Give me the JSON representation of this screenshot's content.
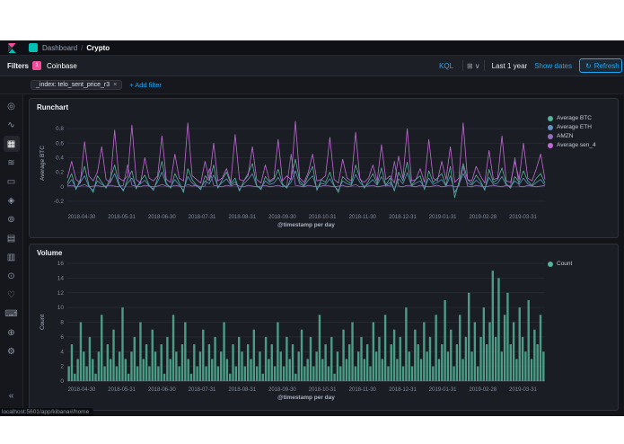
{
  "header": {
    "breadcrumb_parent": "Dashboard",
    "breadcrumb_sep": "/",
    "breadcrumb_current": "Crypto"
  },
  "querybar": {
    "filters_label": "Filters",
    "filters_badge": "1",
    "query_value": "Coinbase",
    "kql_label": "KQL",
    "calendar_icon": "⊞",
    "chevron_icon": "∨",
    "time_value": "Last 1 year",
    "show_dates_label": "Show dates",
    "refresh_icon": "↻",
    "refresh_label": "Refresh"
  },
  "filterrow": {
    "pill_label": "_index: telo_sent_price_r3",
    "pill_close": "×",
    "add_filter_label": "+ Add filter"
  },
  "sidebar": {
    "items": [
      {
        "name": "discover",
        "glyph": "◎",
        "active": false
      },
      {
        "name": "visualize",
        "glyph": "∿",
        "active": false
      },
      {
        "name": "dashboard",
        "glyph": "▦",
        "active": true
      },
      {
        "name": "timelion",
        "glyph": "≋",
        "active": false
      },
      {
        "name": "canvas",
        "glyph": "▭",
        "active": false
      },
      {
        "name": "maps",
        "glyph": "◈",
        "active": false
      },
      {
        "name": "machine-learning",
        "glyph": "⊚",
        "active": false
      },
      {
        "name": "infrastructure",
        "glyph": "▤",
        "active": false
      },
      {
        "name": "logs",
        "glyph": "▥",
        "active": false
      },
      {
        "name": "apm",
        "glyph": "⊙",
        "active": false
      },
      {
        "name": "uptime",
        "glyph": "♡",
        "active": false
      },
      {
        "name": "dev-tools",
        "glyph": "⌨",
        "active": false
      },
      {
        "name": "monitoring",
        "glyph": "⊕",
        "active": false
      },
      {
        "name": "management",
        "glyph": "⚙",
        "active": false
      }
    ],
    "collapse_glyph": "«"
  },
  "statusbar": {
    "url": "localhost:5601/app/kibana#/home"
  },
  "chart_data": [
    {
      "type": "line",
      "title": "Runchart",
      "xlabel": "@timestamp per day",
      "ylabel": "Average BTC",
      "ylim": [
        -0.3,
        0.95
      ],
      "yticks": [
        -0.2,
        0,
        0.2,
        0.4,
        0.6,
        0.8
      ],
      "grid": true,
      "legend_position": "top-right",
      "xticklabels": [
        "2018-04-30",
        "2018-05-31",
        "2018-06-30",
        "2018-07-31",
        "2018-08-31",
        "2018-09-30",
        "2018-10-31",
        "2018-11-30",
        "2018-12-31",
        "2019-01-31",
        "2019-02-28",
        "2019-03-31"
      ],
      "series": [
        {
          "name": "Average BTC",
          "color": "#54b399",
          "values": [
            0.05,
            0.18,
            -0.04,
            0.1,
            0.28,
            0.02,
            -0.08,
            0.15,
            0.06,
            -0.02,
            0.12,
            0.3,
            0.04,
            -0.06,
            0.1,
            0.22,
            -0.03,
            0.08,
            0.16,
            0.02,
            -0.05,
            0.12,
            0.35,
            0.05,
            -0.02,
            0.18,
            0.06,
            -0.08,
            0.25,
            0.1,
            0.02,
            -0.04,
            0.15,
            0.08,
            0.3,
            -0.02,
            0.1,
            0.2,
            0.04,
            0.12,
            -0.06,
            0.08,
            0.18,
            0.32,
            0.02,
            -0.04,
            0.14,
            0.06,
            0.1,
            0.24,
            0.04,
            -0.02,
            0.12,
            0.38,
            0.08,
            0.02,
            0.16,
            0.28,
            -0.05,
            0.1,
            0.06,
            0.2,
            0.02,
            -0.08,
            0.14,
            0.08,
            0.04,
            0.3,
            0.12,
            -0.02,
            0.08,
            0.18,
            0.04,
            0.26,
            0.02,
            0.12,
            -0.06,
            0.2,
            0.08,
            0.34,
            0.02,
            0.1,
            0.15,
            -0.04,
            0.22,
            0.06,
            0.12,
            0.18,
            0.02,
            0.28,
            -0.15,
            0.06,
            0.32,
            0.1,
            0.04,
            0.16,
            0.08,
            -0.05,
            0.24,
            0.06,
            0.1,
            0.26,
            0.04,
            -0.02,
            0.14,
            0.06,
            0.22,
            0.08,
            0.02,
            0.12,
            0.18,
            0.05
          ]
        },
        {
          "name": "Average ETH",
          "color": "#6092c0",
          "values": [
            0.02,
            0.1,
            -0.02,
            0.06,
            0.15,
            0.0,
            -0.05,
            0.08,
            0.03,
            0.0,
            0.06,
            0.18,
            0.02,
            -0.04,
            0.05,
            0.12,
            0.0,
            0.04,
            0.09,
            0.01,
            -0.03,
            0.07,
            0.2,
            0.03,
            0.0,
            0.1,
            0.02,
            -0.05,
            0.14,
            0.05,
            0.01,
            -0.02,
            0.08,
            0.04,
            0.16,
            0.0,
            0.06,
            0.11,
            0.02,
            0.07,
            -0.04,
            0.04,
            0.1,
            0.18,
            0.01,
            -0.02,
            0.08,
            0.03,
            0.05,
            0.13,
            0.02,
            0.0,
            0.06,
            0.22,
            0.04,
            0.01,
            0.09,
            0.15,
            -0.03,
            0.05,
            0.03,
            0.11,
            0.01,
            -0.05,
            0.08,
            0.04,
            0.02,
            0.17,
            0.06,
            0.0,
            0.04,
            0.1,
            0.02,
            0.14,
            0.01,
            0.06,
            -0.04,
            0.11,
            0.04,
            0.19,
            0.01,
            0.05,
            0.08,
            -0.02,
            0.12,
            0.03,
            0.06,
            0.1,
            0.01,
            0.15,
            -0.08,
            0.03,
            0.18,
            0.05,
            0.02,
            0.09,
            0.04,
            -0.03,
            0.13,
            0.03,
            0.05,
            0.14,
            0.02,
            0.0,
            0.08,
            0.03,
            0.12,
            0.04,
            0.01,
            0.06,
            0.1,
            0.02
          ]
        },
        {
          "name": "AMZN",
          "color": "#9170b8",
          "values": [
            0.01,
            0.02,
            0.0,
            0.01,
            0.03,
            0.0,
            0.01,
            0.02,
            0.0,
            0.01,
            0.02,
            0.01,
            0.0,
            0.02,
            0.3,
            0.02,
            0.01,
            0.0,
            0.02,
            0.01,
            0.0,
            0.01,
            0.03,
            0.01,
            0.0,
            0.02,
            0.01,
            0.0,
            0.03,
            0.01,
            0.02,
            0.0,
            0.01,
            0.25,
            0.02,
            0.01,
            0.0,
            0.02,
            0.01,
            0.03,
            0.01,
            0.0,
            0.02,
            0.01,
            0.0,
            0.01,
            0.02,
            0.0,
            0.01,
            0.02,
            0.0,
            0.01,
            0.45,
            0.02,
            0.01,
            0.0,
            0.02,
            0.01,
            0.0,
            0.01,
            0.02,
            0.01,
            0.0,
            0.01,
            0.02,
            0.0,
            0.01,
            0.03,
            0.0,
            0.01,
            0.01,
            0.02,
            0.0,
            0.01,
            0.02,
            0.01,
            0.35,
            0.01,
            0.0,
            0.02,
            0.01,
            0.0,
            0.02,
            0.01,
            0.0,
            0.01,
            0.02,
            0.0,
            0.01,
            0.02,
            0.0,
            0.01,
            0.28,
            0.01,
            0.0,
            0.02,
            0.01,
            0.0,
            0.01,
            0.02,
            0.01,
            0.0,
            0.02,
            0.01,
            0.4,
            0.01,
            0.0,
            0.02,
            0.01,
            0.0,
            0.01,
            0.02
          ]
        },
        {
          "name": "Average sen_4",
          "color": "#c269d6",
          "values": [
            0.12,
            0.35,
            0.1,
            0.05,
            0.62,
            0.15,
            0.08,
            0.2,
            0.55,
            0.1,
            0.06,
            0.78,
            0.12,
            0.08,
            0.15,
            0.85,
            0.1,
            0.05,
            0.4,
            0.12,
            0.08,
            0.15,
            0.7,
            0.1,
            0.06,
            0.45,
            0.12,
            0.08,
            0.88,
            0.15,
            0.1,
            0.05,
            0.35,
            0.1,
            0.6,
            0.08,
            0.12,
            0.25,
            0.06,
            0.72,
            0.1,
            0.08,
            0.15,
            0.55,
            0.1,
            0.05,
            0.3,
            0.08,
            0.12,
            0.65,
            0.08,
            0.15,
            0.1,
            0.9,
            0.12,
            0.06,
            0.2,
            0.45,
            0.08,
            0.1,
            0.15,
            0.68,
            0.1,
            0.05,
            0.38,
            0.12,
            0.08,
            0.75,
            0.1,
            0.06,
            0.12,
            0.3,
            0.08,
            0.58,
            0.1,
            0.15,
            0.05,
            0.42,
            0.12,
            0.8,
            0.08,
            0.1,
            0.25,
            0.06,
            0.65,
            0.12,
            0.08,
            0.35,
            0.1,
            0.55,
            0.06,
            0.12,
            0.88,
            0.1,
            0.08,
            0.28,
            0.15,
            0.05,
            0.5,
            0.1,
            0.12,
            0.7,
            0.08,
            0.06,
            0.35,
            0.1,
            0.6,
            0.12,
            0.08,
            0.25,
            0.45,
            0.1
          ]
        }
      ]
    },
    {
      "type": "bar",
      "title": "Volume",
      "xlabel": "@timestamp per day",
      "ylabel": "Count",
      "ylim": [
        0,
        16
      ],
      "yticks": [
        0,
        2,
        4,
        6,
        8,
        10,
        12,
        14,
        16
      ],
      "grid": true,
      "legend_position": "top-right",
      "xticklabels": [
        "2018-04-30",
        "2018-05-31",
        "2018-06-30",
        "2018-07-31",
        "2018-08-31",
        "2018-09-30",
        "2018-10-31",
        "2018-11-30",
        "2018-12-31",
        "2019-01-31",
        "2019-02-28",
        "2019-03-31"
      ],
      "series": [
        {
          "name": "Count",
          "color": "#54b399",
          "values": [
            2,
            5,
            1,
            3,
            8,
            4,
            2,
            6,
            3,
            1,
            4,
            9,
            2,
            5,
            3,
            7,
            2,
            4,
            10,
            3,
            1,
            4,
            6,
            2,
            8,
            3,
            5,
            2,
            7,
            4,
            2,
            5,
            1,
            6,
            3,
            9,
            4,
            2,
            5,
            8,
            3,
            1,
            5,
            2,
            4,
            7,
            2,
            5,
            3,
            6,
            2,
            4,
            8,
            3,
            1,
            5,
            2,
            6,
            4,
            2,
            5,
            3,
            7,
            2,
            4,
            1,
            6,
            3,
            5,
            2,
            8,
            4,
            2,
            6,
            3,
            5,
            1,
            4,
            7,
            2,
            3,
            6,
            2,
            4,
            9,
            3,
            5,
            2,
            6,
            1,
            4,
            2,
            7,
            3,
            5,
            8,
            2,
            4,
            6,
            3,
            5,
            2,
            8,
            4,
            6,
            3,
            9,
            2,
            5,
            7,
            3,
            6,
            2,
            10,
            4,
            2,
            7,
            5,
            3,
            8,
            4,
            6,
            2,
            9,
            3,
            5,
            11,
            4,
            7,
            2,
            5,
            9,
            3,
            6,
            12,
            4,
            8,
            2,
            6,
            10,
            5,
            8,
            15,
            6,
            14,
            4,
            9,
            12,
            5,
            8,
            3,
            10,
            6,
            4,
            11,
            3,
            7,
            5,
            9,
            4
          ]
        }
      ]
    }
  ]
}
